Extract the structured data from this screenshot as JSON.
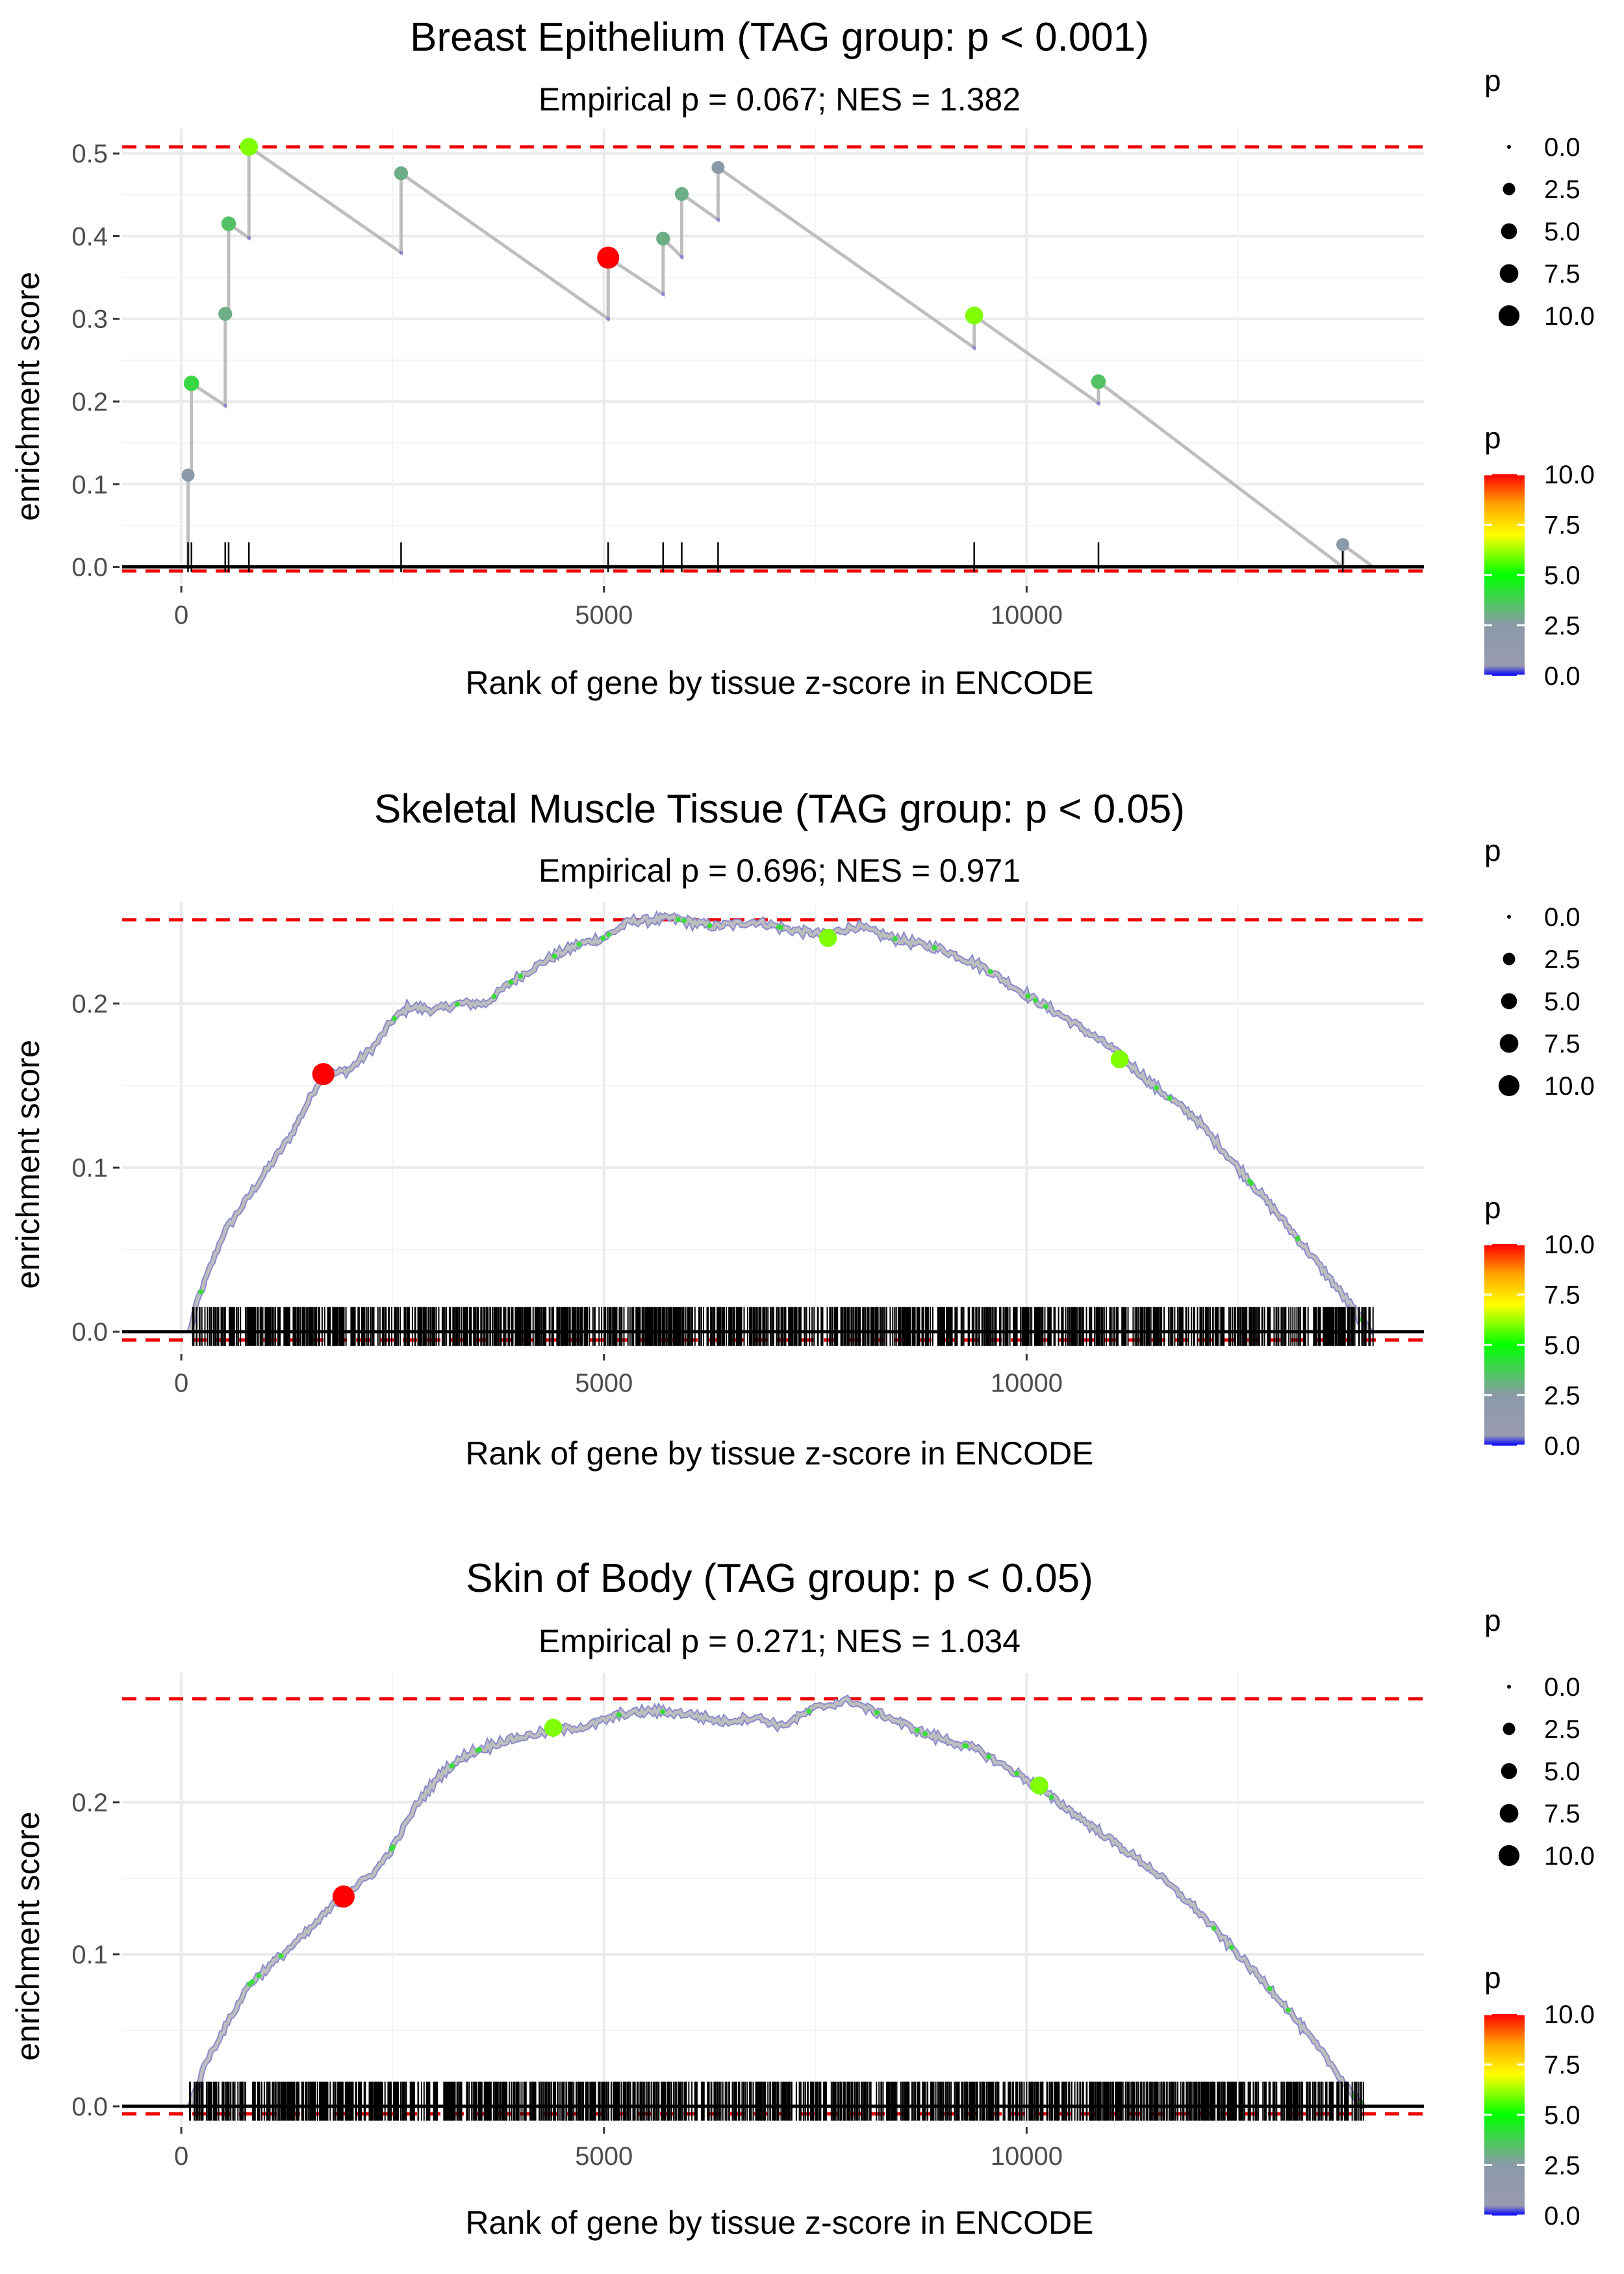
{
  "chart_data": [
    {
      "type": "line",
      "title": "Breast Epithelium (TAG group: p < 0.001)",
      "subtitle": "Empirical p = 0.067; NES = 1.382",
      "xlabel": "Rank of gene by tissue z-score in ENCODE",
      "ylabel": "enrichment score",
      "xlim": [
        -700,
        14700
      ],
      "ylim": [
        -0.02,
        0.53
      ],
      "xticks": [
        0,
        5000,
        10000
      ],
      "yticks": [
        0.0,
        0.1,
        0.2,
        0.3,
        0.4,
        0.5
      ],
      "ytick_labels": [
        "0.0",
        "0.1",
        "0.2",
        "0.3",
        "0.4",
        "0.5"
      ],
      "xtick_labels": [
        "0",
        "5000",
        "10000"
      ],
      "max_line": 0.508,
      "min_line": -0.005,
      "n_genes": 14100,
      "curve_style": "sawtooth",
      "hits": [
        {
          "rank": 80,
          "es": 0.111,
          "p": 2.5
        },
        {
          "rank": 120,
          "es": 0.222,
          "p": 4.0
        },
        {
          "rank": 520,
          "es": 0.306,
          "p": 3.0
        },
        {
          "rank": 560,
          "es": 0.415,
          "p": 3.5
        },
        {
          "rank": 800,
          "es": 0.508,
          "p": 6.0
        },
        {
          "rank": 2600,
          "es": 0.476,
          "p": 3.0
        },
        {
          "rank": 5050,
          "es": 0.374,
          "p": 10.0
        },
        {
          "rank": 5700,
          "es": 0.397,
          "p": 3.0
        },
        {
          "rank": 5920,
          "es": 0.451,
          "p": 3.0
        },
        {
          "rank": 6350,
          "es": 0.483,
          "p": 2.5
        },
        {
          "rank": 9380,
          "es": 0.304,
          "p": 6.0
        },
        {
          "rank": 10850,
          "es": 0.224,
          "p": 3.5
        },
        {
          "rank": 13740,
          "es": 0.027,
          "p": 2.5
        }
      ],
      "legend_size": {
        "title": "p",
        "values": [
          0.0,
          2.5,
          5.0,
          7.5,
          10.0
        ],
        "labels": [
          "0.0",
          "2.5",
          "5.0",
          "7.5",
          "10.0"
        ]
      },
      "legend_color": {
        "title": "p",
        "values": [
          0.0,
          2.5,
          5.0,
          7.5,
          10.0
        ],
        "labels": [
          "0.0",
          "2.5",
          "5.0",
          "7.5",
          "10.0"
        ]
      }
    },
    {
      "type": "line",
      "title": "Skeletal Muscle Tissue (TAG group: p < 0.05)",
      "subtitle": "Empirical p = 0.696; NES = 0.971",
      "xlabel": "Rank of gene by tissue z-score in ENCODE",
      "ylabel": "enrichment score",
      "xlim": [
        -700,
        14700
      ],
      "ylim": [
        -0.012,
        0.262
      ],
      "xticks": [
        0,
        5000,
        10000
      ],
      "yticks": [
        0.0,
        0.1,
        0.2
      ],
      "ytick_labels": [
        "0.0",
        "0.1",
        "0.2"
      ],
      "xtick_labels": [
        "0",
        "5000",
        "10000"
      ],
      "max_line": 0.251,
      "min_line": -0.005,
      "n_genes": 14100,
      "curve_style": "dense",
      "curve": [
        [
          100,
          0.0
        ],
        [
          200,
          0.02
        ],
        [
          500,
          0.06
        ],
        [
          900,
          0.09
        ],
        [
          1300,
          0.12
        ],
        [
          1650,
          0.155
        ],
        [
          2000,
          0.16
        ],
        [
          2300,
          0.175
        ],
        [
          2500,
          0.19
        ],
        [
          2700,
          0.198
        ],
        [
          3000,
          0.196
        ],
        [
          3300,
          0.2
        ],
        [
          3600,
          0.2
        ],
        [
          3900,
          0.213
        ],
        [
          4300,
          0.226
        ],
        [
          4700,
          0.236
        ],
        [
          5000,
          0.24
        ],
        [
          5300,
          0.25
        ],
        [
          5800,
          0.252
        ],
        [
          6300,
          0.247
        ],
        [
          6800,
          0.25
        ],
        [
          7200,
          0.245
        ],
        [
          7600,
          0.242
        ],
        [
          8000,
          0.247
        ],
        [
          8400,
          0.24
        ],
        [
          9000,
          0.233
        ],
        [
          9500,
          0.222
        ],
        [
          10000,
          0.205
        ],
        [
          10500,
          0.19
        ],
        [
          11000,
          0.173
        ],
        [
          11500,
          0.15
        ],
        [
          12000,
          0.13
        ],
        [
          12500,
          0.1
        ],
        [
          13000,
          0.07
        ],
        [
          13500,
          0.038
        ],
        [
          14000,
          0.005
        ],
        [
          14100,
          0.0
        ]
      ],
      "big_points": [
        {
          "rank": 1680,
          "es": 0.157,
          "p": 10.0
        },
        {
          "rank": 7650,
          "es": 0.24,
          "p": 6.0
        },
        {
          "rank": 11100,
          "es": 0.166,
          "p": 6.0
        }
      ],
      "legend_size": {
        "title": "p",
        "values": [
          0.0,
          2.5,
          5.0,
          7.5,
          10.0
        ],
        "labels": [
          "0.0",
          "2.5",
          "5.0",
          "7.5",
          "10.0"
        ]
      },
      "legend_color": {
        "title": "p",
        "values": [
          0.0,
          2.5,
          5.0,
          7.5,
          10.0
        ],
        "labels": [
          "0.0",
          "2.5",
          "5.0",
          "7.5",
          "10.0"
        ]
      }
    },
    {
      "type": "line",
      "title": "Skin of Body (TAG group: p < 0.05)",
      "subtitle": "Empirical p = 0.271; NES = 1.034",
      "xlabel": "Rank of gene by tissue z-score in ENCODE",
      "ylabel": "enrichment score",
      "xlim": [
        -700,
        14700
      ],
      "ylim": [
        -0.012,
        0.285
      ],
      "xticks": [
        0,
        5000,
        10000
      ],
      "yticks": [
        0.0,
        0.1,
        0.2
      ],
      "ytick_labels": [
        "0.0",
        "0.1",
        "0.2"
      ],
      "xtick_labels": [
        "0",
        "5000",
        "10000"
      ],
      "max_line": 0.268,
      "min_line": -0.005,
      "n_genes": 14100,
      "curve_style": "dense",
      "curve": [
        [
          100,
          0.0
        ],
        [
          300,
          0.03
        ],
        [
          500,
          0.05
        ],
        [
          800,
          0.08
        ],
        [
          1100,
          0.095
        ],
        [
          1500,
          0.115
        ],
        [
          1900,
          0.138
        ],
        [
          2100,
          0.146
        ],
        [
          2300,
          0.155
        ],
        [
          2500,
          0.17
        ],
        [
          2800,
          0.2
        ],
        [
          3100,
          0.22
        ],
        [
          3400,
          0.232
        ],
        [
          3800,
          0.24
        ],
        [
          4200,
          0.245
        ],
        [
          4500,
          0.248
        ],
        [
          4800,
          0.25
        ],
        [
          5200,
          0.258
        ],
        [
          5600,
          0.26
        ],
        [
          6000,
          0.258
        ],
        [
          6400,
          0.253
        ],
        [
          6800,
          0.256
        ],
        [
          7100,
          0.25
        ],
        [
          7500,
          0.262
        ],
        [
          7900,
          0.267
        ],
        [
          8100,
          0.262
        ],
        [
          8400,
          0.255
        ],
        [
          8800,
          0.245
        ],
        [
          9400,
          0.235
        ],
        [
          10000,
          0.215
        ],
        [
          10500,
          0.195
        ],
        [
          11000,
          0.175
        ],
        [
          11500,
          0.155
        ],
        [
          12000,
          0.13
        ],
        [
          12500,
          0.1
        ],
        [
          13000,
          0.07
        ],
        [
          13500,
          0.035
        ],
        [
          13900,
          0.005
        ],
        [
          14000,
          0.0
        ]
      ],
      "big_points": [
        {
          "rank": 1920,
          "es": 0.138,
          "p": 10.0
        },
        {
          "rank": 4400,
          "es": 0.249,
          "p": 6.0
        },
        {
          "rank": 10150,
          "es": 0.211,
          "p": 6.0
        }
      ],
      "legend_size": {
        "title": "p",
        "values": [
          0.0,
          2.5,
          5.0,
          7.5,
          10.0
        ],
        "labels": [
          "0.0",
          "2.5",
          "5.0",
          "7.5",
          "10.0"
        ]
      },
      "legend_color": {
        "title": "p",
        "values": [
          0.0,
          2.5,
          5.0,
          7.5,
          10.0
        ],
        "labels": [
          "0.0",
          "2.5",
          "5.0",
          "7.5",
          "10.0"
        ]
      }
    }
  ],
  "colors": {
    "curve": "#bebebe",
    "max_line": "#ee0000",
    "zero_line": "#000000",
    "grid": "#ebebeb",
    "text": "#000000",
    "tick_text": "#4d4d4d",
    "scale": [
      "#0000ff",
      "#9a9ab0",
      "#00ff00",
      "#ffff00",
      "#ffa500",
      "#ff0000"
    ]
  }
}
